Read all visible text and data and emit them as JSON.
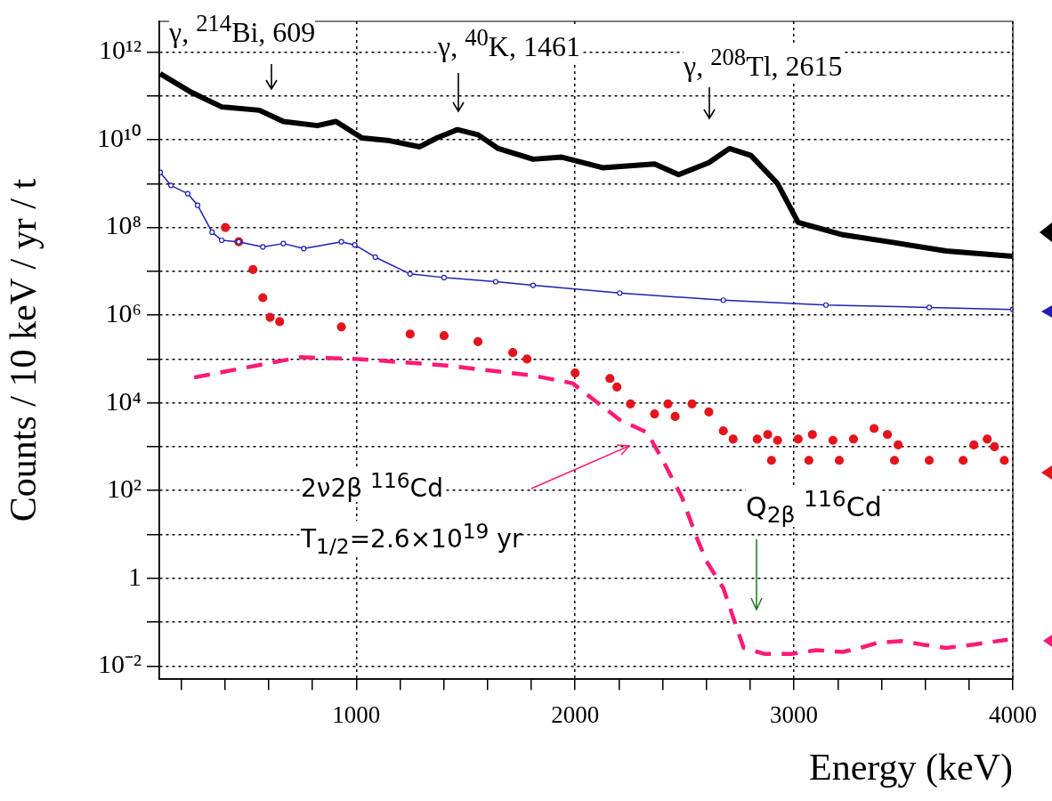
{
  "chart_data": {
    "type": "line",
    "xlabel": "Energy (keV)",
    "ylabel": "Counts / 10 keV / yr / t",
    "log": "y",
    "grid": true,
    "xlim": [
      100,
      4000
    ],
    "ylim": [
      0.005,
      5000000000000.0
    ],
    "xticks": [
      {
        "value": 200,
        "label": null
      },
      {
        "value": 400,
        "label": null
      },
      {
        "value": 600,
        "label": null
      },
      {
        "value": 800,
        "label": null
      },
      1000,
      {
        "value": 1200,
        "label": null
      },
      {
        "value": 1400,
        "label": null
      },
      {
        "value": 1600,
        "label": null
      },
      {
        "value": 1800,
        "label": null
      },
      2000,
      {
        "value": 2200,
        "label": null
      },
      {
        "value": 2400,
        "label": null
      },
      {
        "value": 2600,
        "label": null
      },
      {
        "value": 2800,
        "label": null
      },
      3000,
      {
        "value": 3200,
        "label": null
      },
      {
        "value": 3400,
        "label": null
      },
      {
        "value": 3600,
        "label": null
      },
      {
        "value": 3800,
        "label": null
      },
      4000
    ],
    "yticks": [
      {
        "value": 0.01,
        "label": "10⁻²"
      },
      {
        "value": 0.1,
        "label": null
      },
      1,
      {
        "value": 10,
        "label": null
      },
      {
        "value": 100,
        "label": "10²"
      },
      {
        "value": 1000,
        "label": null
      },
      {
        "value": 10000,
        "label": "10⁴"
      },
      {
        "value": 100000,
        "label": null
      },
      {
        "value": 1000000,
        "label": "10⁶"
      },
      {
        "value": 10000000,
        "label": null
      },
      {
        "value": 100000000,
        "label": "10⁸"
      },
      {
        "value": 1000000000,
        "label": null
      },
      {
        "value": 10000000000,
        "label": "10¹⁰"
      },
      {
        "value": 100000000000,
        "label": null
      },
      {
        "value": 1000000000000,
        "label": "10¹²"
      }
    ],
    "series": [
      {
        "marker": "none",
        "color": "#000000",
        "x": [
          104,
          247,
          385,
          557,
          667,
          822,
          907,
          1026,
          1152,
          1290,
          1368,
          1462,
          1556,
          1649,
          1808,
          1939,
          2126,
          2363,
          2473,
          2611,
          2705,
          2803,
          2925,
          3019,
          3223,
          3459,
          3696,
          4000
        ],
        "values": [
          320000000000.0,
          120000000000.0,
          56000000000.0,
          47000000000.0,
          26000000000.0,
          21000000000.0,
          26000000000.0,
          11000000000.0,
          9500000000.0,
          6900000000.0,
          11000000000.0,
          17000000000.0,
          13000000000.0,
          6300000000.0,
          3600000000.0,
          4000000000.0,
          2300000000.0,
          2800000000.0,
          1600000000.0,
          3000000000.0,
          6300000000.0,
          4400000000.0,
          1000000000.0,
          130000000.0,
          68000000.0,
          45000000.0,
          29000000.0,
          22000000.0
        ]
      },
      {
        "marker": "circle",
        "color": "#1f1fb4",
        "x": [
          104,
          153,
          230,
          275,
          341,
          385,
          463,
          573,
          667,
          760,
          932,
          993,
          1087,
          1246,
          1401,
          1637,
          1808,
          2204,
          2677,
          3146,
          3618,
          4000
        ],
        "values": [
          1800000000.0,
          910000000.0,
          590000000.0,
          320000000.0,
          78000000.0,
          51000000.0,
          47000000.0,
          36000000.0,
          43000000.0,
          33000000.0,
          47000000.0,
          40000000.0,
          21000000.0,
          8700000.0,
          7200000.0,
          5800000.0,
          4800000.0,
          3200000.0,
          2200000.0,
          1700000.0,
          1500000.0,
          1350000.0
        ]
      },
      {
        "type": "scatter",
        "marker": "circle",
        "color": "#e3141c",
        "x": [
          402,
          463,
          528,
          573,
          606,
          650,
          932,
          1246,
          1401,
          1556,
          1715,
          1780,
          2000,
          2159,
          2191,
          2253,
          2363,
          2424,
          2457,
          2534,
          2611,
          2677,
          2722,
          2832,
          2880,
          2897,
          2925,
          3019,
          3068,
          3084,
          3178,
          3207,
          3272,
          3366,
          3427,
          3459,
          3476,
          3618,
          3773,
          3822,
          3883,
          3916,
          3961
        ],
        "values": [
          100000000.0,
          47000000.0,
          11000000.0,
          2500000.0,
          890000.0,
          710000.0,
          540000.0,
          370000.0,
          340000.0,
          250000.0,
          140000.0,
          100000.0,
          48000.0,
          36000.0,
          23000.0,
          9500.0,
          5600.0,
          9500.0,
          4900.0,
          9500.0,
          6200.0,
          2300.0,
          1500.0,
          1500.0,
          1900.0,
          490,
          1400.0,
          1500.0,
          490,
          1900.0,
          1400.0,
          490,
          1500.0,
          2600.0,
          1900.0,
          490,
          1100.0,
          490,
          490,
          1100.0,
          1500.0,
          1000.0,
          490
        ]
      },
      {
        "marker": "none",
        "line_style": "dashed",
        "color": "#ff1a75",
        "x": [
          259,
          744,
          1009,
          1401,
          1808,
          1988,
          2204,
          2330,
          2408,
          2489,
          2550,
          2599,
          2677,
          2722,
          2770,
          2864,
          2991,
          3101,
          3223,
          3304,
          3382,
          3492,
          3586,
          3696,
          3822,
          3977
        ],
        "values": [
          38000.0,
          110000.0,
          100000.0,
          72000.0,
          42000.0,
          28000.0,
          4100.0,
          2100.0,
          420,
          69,
          10,
          2.5,
          0.6,
          0.13,
          0.026,
          0.019,
          0.019,
          0.023,
          0.021,
          0.026,
          0.034,
          0.037,
          0.031,
          0.026,
          0.031,
          0.04
        ]
      }
    ],
    "annotations": [
      "γ, $^{214}$Bi, 609",
      "γ, $^{40}$K, 1461",
      "γ, $^{208}$Tl, 2615",
      "2ν2β $^{116}$Cd",
      "T$_{1/2}$=2.6×10$^{19}$ yr",
      "Q$_{2β}$ $^{116}$Cd"
    ]
  }
}
